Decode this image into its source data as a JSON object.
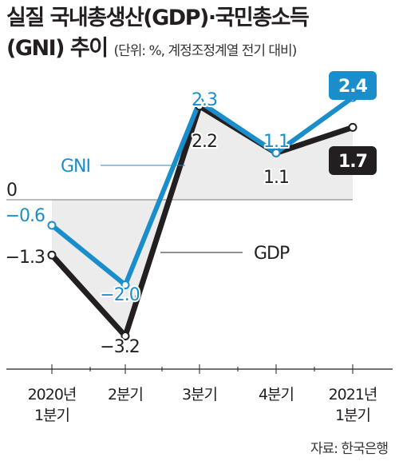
{
  "title": {
    "line1": "실질 국내총생산(GDP)·국민총소득",
    "line2": "(GNI) 추이",
    "unit_note": "(단위: %, 계정조정계열 전기 대비)"
  },
  "source": "자료: 한국은행",
  "colors": {
    "gdp": "#231f20",
    "gni": "#1a8ecb",
    "area": "#ececec"
  },
  "chart_data": {
    "type": "line",
    "categories": [
      "2020년 1분기",
      "2분기",
      "3분기",
      "4분기",
      "2021년 1분기"
    ],
    "category_lines": [
      [
        "2020년",
        "1분기"
      ],
      [
        "2분기"
      ],
      [
        "3분기"
      ],
      [
        "4분기"
      ],
      [
        "2021년",
        "1분기"
      ]
    ],
    "zero_label": "0",
    "ylim": [
      -3.6,
      3.0
    ],
    "series": [
      {
        "name": "GDP",
        "values": [
          -1.3,
          -3.2,
          2.2,
          1.1,
          1.7
        ]
      },
      {
        "name": "GNI",
        "values": [
          -0.6,
          -2.0,
          2.3,
          1.1,
          2.4
        ]
      }
    ],
    "value_labels": {
      "GDP": [
        "−1.3",
        "−3.2",
        "2.2",
        "1.1",
        "1.7"
      ],
      "GNI": [
        "−0.6",
        "−2.0",
        "2.3",
        "1.1",
        "2.4"
      ]
    }
  }
}
